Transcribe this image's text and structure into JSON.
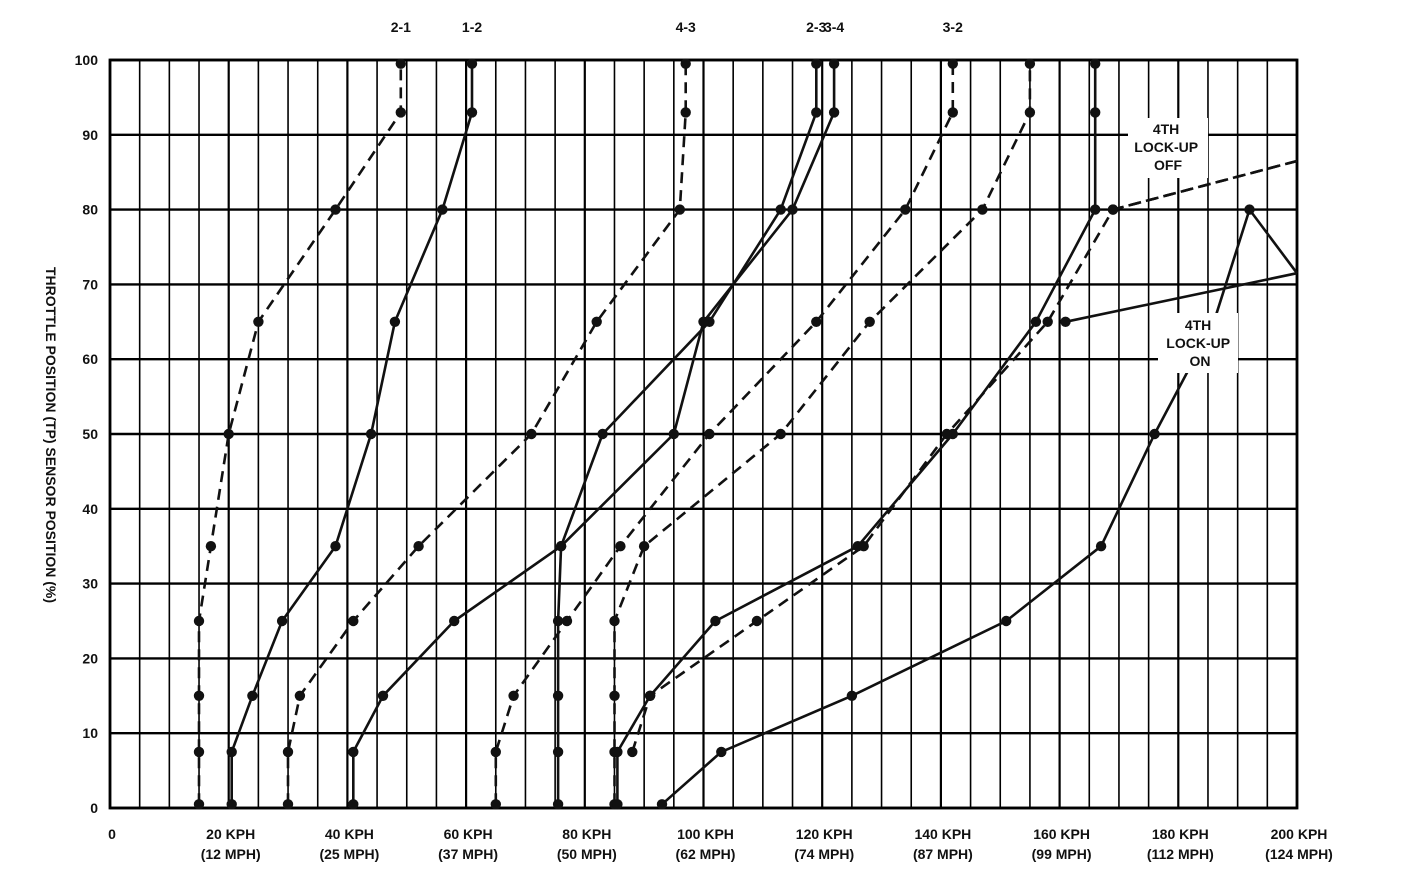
{
  "chart_data": {
    "type": "line",
    "title": "",
    "ylabel": "THROTTLE POSITION (TP) SENSOR POSITION (%)",
    "xlabel": "",
    "xlim": [
      0,
      200
    ],
    "ylim": [
      0,
      100
    ],
    "grid": true,
    "y_ticks": [
      "0",
      "10",
      "20",
      "30",
      "40",
      "50",
      "60",
      "70",
      "80",
      "90",
      "100"
    ],
    "x_ticks": [
      {
        "kph": "0",
        "mph": ""
      },
      {
        "kph": "20 KPH",
        "mph": "(12 MPH)"
      },
      {
        "kph": "40 KPH",
        "mph": "(25 MPH)"
      },
      {
        "kph": "60 KPH",
        "mph": "(37 MPH)"
      },
      {
        "kph": "80 KPH",
        "mph": "(50 MPH)"
      },
      {
        "kph": "100 KPH",
        "mph": "(62 MPH)"
      },
      {
        "kph": "120 KPH",
        "mph": "(74 MPH)"
      },
      {
        "kph": "140 KPH",
        "mph": "(87 MPH)"
      },
      {
        "kph": "160 KPH",
        "mph": "(99 MPH)"
      },
      {
        "kph": "180 KPH",
        "mph": "(112 MPH)"
      },
      {
        "kph": "200 KPH",
        "mph": "(124 MPH)"
      }
    ],
    "annotations": {
      "lockup_off": [
        "4TH",
        "LOCK-UP",
        "OFF"
      ],
      "lockup_on": [
        "4TH",
        "LOCK-UP",
        "ON"
      ]
    },
    "series": [
      {
        "name": "2-1",
        "style": "dashed",
        "points": [
          [
            15,
            0.5
          ],
          [
            15,
            7.5
          ],
          [
            15,
            15
          ],
          [
            15,
            25
          ],
          [
            17,
            35
          ],
          [
            20,
            50
          ],
          [
            25,
            65
          ],
          [
            38,
            80
          ],
          [
            49,
            93
          ],
          [
            49,
            99.5
          ]
        ]
      },
      {
        "name": "1-2",
        "style": "solid",
        "points": [
          [
            20.5,
            0.5
          ],
          [
            20.5,
            7.5
          ],
          [
            24,
            15
          ],
          [
            29,
            25
          ],
          [
            38,
            35
          ],
          [
            44,
            50
          ],
          [
            48,
            65
          ],
          [
            56,
            80
          ],
          [
            61,
            93
          ],
          [
            61,
            99.5
          ]
        ]
      },
      {
        "name": "3-2",
        "style": "dashed",
        "points": [
          [
            65,
            0.5
          ],
          [
            65,
            7.5
          ],
          [
            68,
            15
          ],
          [
            77,
            25
          ],
          [
            86,
            35
          ],
          [
            101,
            50
          ],
          [
            119,
            65
          ],
          [
            134,
            80
          ],
          [
            142,
            93
          ],
          [
            142,
            99.5
          ]
        ]
      },
      {
        "name": "2-3",
        "style": "solid",
        "points": [
          [
            75.5,
            0.5
          ],
          [
            75.5,
            7.5
          ],
          [
            75.5,
            15
          ],
          [
            75.5,
            25
          ],
          [
            76,
            35
          ],
          [
            83,
            50
          ],
          [
            101,
            65
          ],
          [
            113,
            80
          ],
          [
            119,
            93
          ],
          [
            119,
            99.5
          ]
        ]
      },
      {
        "name": "4-3",
        "style": "dashed",
        "points": [
          [
            30,
            0.5
          ],
          [
            30,
            7.5
          ],
          [
            32,
            15
          ],
          [
            41,
            25
          ],
          [
            52,
            35
          ],
          [
            71,
            50
          ],
          [
            82,
            65
          ],
          [
            96,
            80
          ],
          [
            97,
            93
          ],
          [
            97,
            99.5
          ]
        ]
      },
      {
        "name": "3-4",
        "style": "solid",
        "points": [
          [
            41,
            0.5
          ],
          [
            41,
            7.5
          ],
          [
            46,
            15
          ],
          [
            58,
            25
          ],
          [
            76,
            35
          ],
          [
            95,
            50
          ],
          [
            100,
            65
          ],
          [
            115,
            80
          ],
          [
            122,
            93
          ],
          [
            122,
            99.5
          ]
        ]
      },
      {
        "name": "",
        "style": "dashed",
        "points": [
          [
            85,
            0.5
          ],
          [
            85,
            7.5
          ],
          [
            85,
            15
          ],
          [
            85,
            25
          ],
          [
            90,
            35
          ],
          [
            113,
            50
          ],
          [
            128,
            65
          ],
          [
            147,
            80
          ],
          [
            155,
            93
          ],
          [
            155,
            99.5
          ]
        ]
      },
      {
        "name": "",
        "style": "solid",
        "points": [
          [
            85.5,
            0.5
          ],
          [
            85.5,
            7.5
          ],
          [
            91,
            15
          ],
          [
            102,
            25
          ],
          [
            126,
            35
          ],
          [
            142,
            50
          ],
          [
            156,
            65
          ],
          [
            166,
            80
          ],
          [
            166,
            93
          ],
          [
            166,
            99.5
          ]
        ]
      },
      {
        "name": "",
        "style": "dashed",
        "points": [
          [
            88,
            7.5
          ],
          [
            91,
            15
          ],
          [
            109,
            25
          ],
          [
            127,
            35
          ],
          [
            141,
            50
          ],
          [
            158,
            65
          ],
          [
            169,
            80
          ],
          [
            200,
            86.5
          ]
        ]
      },
      {
        "name": "",
        "style": "solid",
        "points": [
          [
            93,
            0.5
          ],
          [
            103,
            7.5
          ],
          [
            125,
            15
          ],
          [
            151,
            25
          ],
          [
            167,
            35
          ],
          [
            176,
            50
          ],
          [
            186,
            65
          ],
          [
            192,
            80
          ],
          [
            200,
            71.5
          ]
        ]
      },
      {
        "name": "",
        "style": "dashed",
        "points": [
          [
            169,
            80
          ],
          [
            200,
            86.5
          ]
        ]
      },
      {
        "name": "",
        "style": "solid",
        "points": [
          [
            161,
            65
          ],
          [
            200,
            71.5
          ]
        ]
      }
    ]
  }
}
